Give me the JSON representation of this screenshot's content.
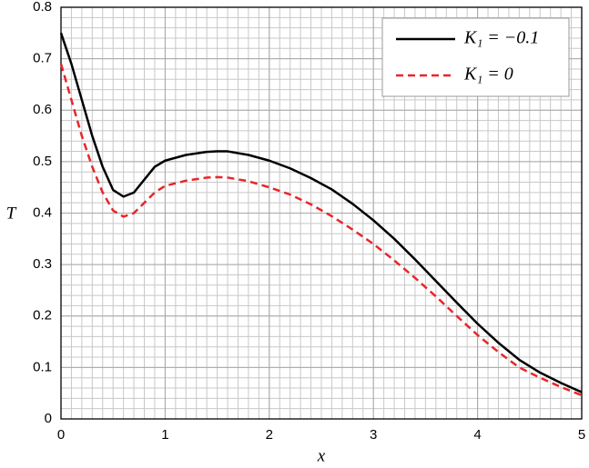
{
  "chart_data": {
    "type": "line",
    "xlabel": "x",
    "ylabel": "T",
    "x": [
      0,
      0.1,
      0.2,
      0.3,
      0.4,
      0.5,
      0.6,
      0.7,
      0.8,
      0.9,
      1.0,
      1.2,
      1.4,
      1.5,
      1.6,
      1.8,
      2.0,
      2.2,
      2.4,
      2.6,
      2.8,
      3.0,
      3.2,
      3.4,
      3.6,
      3.8,
      4.0,
      4.2,
      4.4,
      4.6,
      4.8,
      5.0
    ],
    "series": [
      {
        "name": "K₁ = −0.1",
        "color": "#000000",
        "dash": false,
        "values": [
          0.75,
          0.69,
          0.62,
          0.55,
          0.49,
          0.445,
          0.432,
          0.44,
          0.465,
          0.49,
          0.502,
          0.513,
          0.519,
          0.52,
          0.52,
          0.513,
          0.502,
          0.487,
          0.468,
          0.446,
          0.418,
          0.386,
          0.35,
          0.31,
          0.268,
          0.226,
          0.185,
          0.148,
          0.115,
          0.09,
          0.07,
          0.052
        ]
      },
      {
        "name": "K₁ = 0",
        "color": "#e8262a",
        "dash": true,
        "values": [
          0.69,
          0.62,
          0.55,
          0.49,
          0.44,
          0.405,
          0.393,
          0.4,
          0.42,
          0.44,
          0.453,
          0.463,
          0.469,
          0.47,
          0.469,
          0.462,
          0.45,
          0.436,
          0.417,
          0.394,
          0.368,
          0.34,
          0.308,
          0.274,
          0.238,
          0.2,
          0.163,
          0.13,
          0.1,
          0.08,
          0.062,
          0.046
        ]
      }
    ],
    "xlim": [
      0,
      5
    ],
    "ylim": [
      0,
      0.8
    ],
    "xticks": [
      0,
      1,
      2,
      3,
      4,
      5
    ],
    "yticks": [
      0,
      0.1,
      0.2,
      0.3,
      0.4,
      0.5,
      0.6,
      0.7,
      0.8
    ],
    "grid": true,
    "minor_grid": {
      "x_step": 0.1,
      "y_step": 0.02
    },
    "legend": "upper right"
  }
}
